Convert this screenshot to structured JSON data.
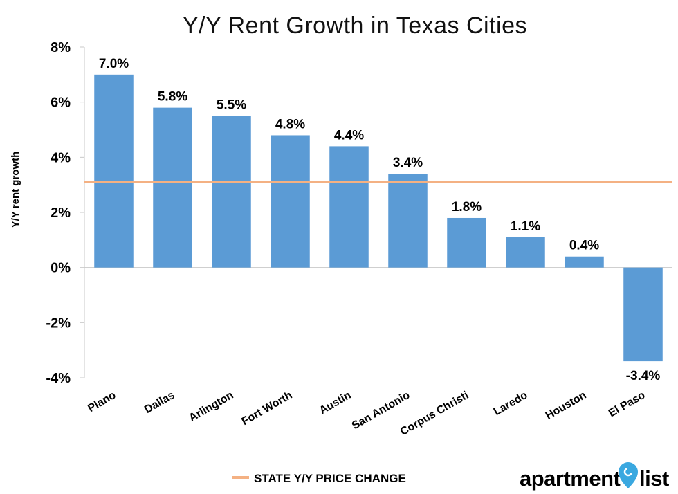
{
  "chart_data": {
    "type": "bar",
    "title": "Y/Y Rent Growth in Texas Cities",
    "xlabel": "",
    "ylabel": "Y/Y rent growth",
    "categories": [
      "Plano",
      "Dallas",
      "Arlington",
      "Fort Worth",
      "Austin",
      "San Antonio",
      "Corpus Christi",
      "Laredo",
      "Houston",
      "El Paso"
    ],
    "values": [
      7.0,
      5.8,
      5.5,
      4.8,
      4.4,
      3.4,
      1.8,
      1.1,
      0.4,
      -3.4
    ],
    "data_labels": [
      "7.0%",
      "5.8%",
      "5.5%",
      "4.8%",
      "4.4%",
      "3.4%",
      "1.8%",
      "1.1%",
      "0.4%",
      "-3.4%"
    ],
    "ylim": [
      -4,
      8
    ],
    "yticks": [
      8,
      6,
      4,
      2,
      0,
      -2,
      -4
    ],
    "ytick_labels": [
      "8%",
      "6%",
      "4%",
      "2%",
      "0%",
      "-2%",
      "-4%"
    ],
    "reference_line": {
      "label": "STATE Y/Y PRICE CHANGE",
      "value": 3.1
    },
    "grid": false,
    "legend": "bottom",
    "colors": {
      "bar": "#5b9bd5",
      "reference_line": "#f4b183"
    }
  },
  "logo": {
    "text_left": "apartment",
    "text_right": "list",
    "pin_color": "#3aa8e0"
  }
}
